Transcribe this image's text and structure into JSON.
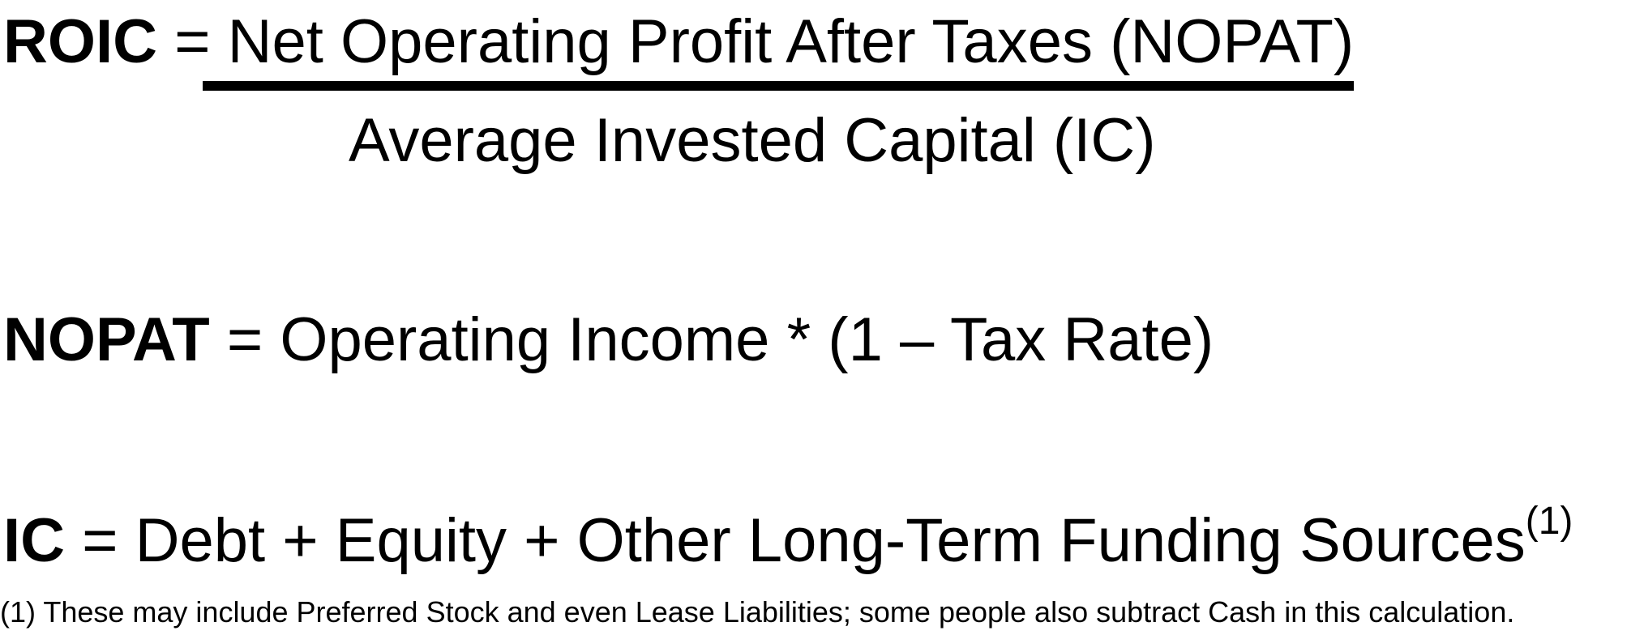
{
  "roic": {
    "label": "ROIC",
    "equals": " = ",
    "numerator": "Net Operating Profit After Taxes (NOPAT)",
    "denominator": "Average Invested Capital (IC)"
  },
  "nopat": {
    "label": "NOPAT",
    "equals": " = ",
    "expression": "Operating Income * (1 – Tax Rate)"
  },
  "ic": {
    "label": "IC",
    "equals": " = ",
    "expression": "Debt + Equity + Other Long-Term Funding Sources",
    "footnote_marker": "(1)"
  },
  "footnote": {
    "text": "(1) These may include Preferred Stock and even Lease Liabilities; some people also subtract Cash in this calculation."
  }
}
